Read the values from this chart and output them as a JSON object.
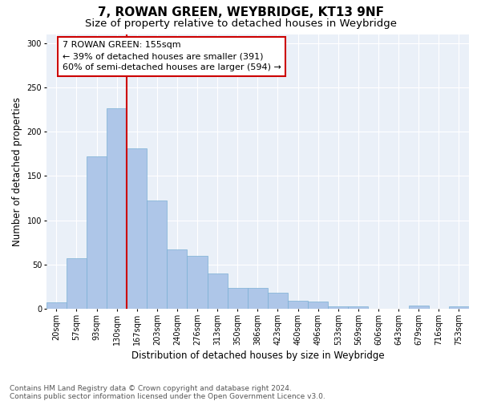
{
  "title": "7, ROWAN GREEN, WEYBRIDGE, KT13 9NF",
  "subtitle": "Size of property relative to detached houses in Weybridge",
  "xlabel": "Distribution of detached houses by size in Weybridge",
  "ylabel": "Number of detached properties",
  "categories": [
    "20sqm",
    "57sqm",
    "93sqm",
    "130sqm",
    "167sqm",
    "203sqm",
    "240sqm",
    "276sqm",
    "313sqm",
    "350sqm",
    "386sqm",
    "423sqm",
    "460sqm",
    "496sqm",
    "533sqm",
    "569sqm",
    "606sqm",
    "643sqm",
    "679sqm",
    "716sqm",
    "753sqm"
  ],
  "values": [
    7,
    57,
    172,
    226,
    181,
    122,
    67,
    60,
    40,
    24,
    24,
    18,
    9,
    8,
    3,
    3,
    0,
    0,
    4,
    0,
    3
  ],
  "bar_color": "#aec6e8",
  "bar_edge_color": "#7aafd4",
  "vline_x_index": 4,
  "vline_color": "#cc0000",
  "annotation_text": "7 ROWAN GREEN: 155sqm\n← 39% of detached houses are smaller (391)\n60% of semi-detached houses are larger (594) →",
  "annotation_box_color": "#ffffff",
  "annotation_box_edge_color": "#cc0000",
  "ylim": [
    0,
    310
  ],
  "yticks": [
    0,
    50,
    100,
    150,
    200,
    250,
    300
  ],
  "footnote": "Contains HM Land Registry data © Crown copyright and database right 2024.\nContains public sector information licensed under the Open Government Licence v3.0.",
  "bg_color": "#eaf0f8",
  "fig_bg_color": "#ffffff",
  "title_fontsize": 11,
  "subtitle_fontsize": 9.5,
  "xlabel_fontsize": 8.5,
  "ylabel_fontsize": 8.5,
  "tick_fontsize": 7,
  "annotation_fontsize": 8,
  "footnote_fontsize": 6.5
}
